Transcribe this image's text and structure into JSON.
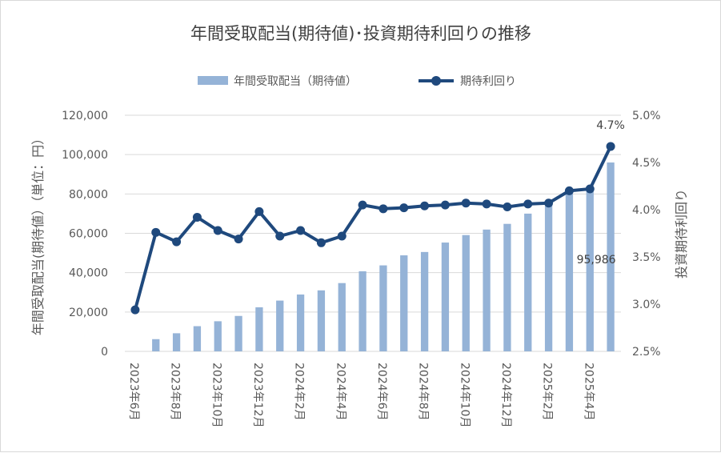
{
  "chart_data": {
    "type": "bar+line",
    "title": "年間受取配当(期待値)･投資期待利回りの推移",
    "ylabel": "年間受取配当(期待値）（単位：円）",
    "y2label": "投資期待利回り",
    "ylim": [
      0,
      120000
    ],
    "y2lim": [
      2.5,
      5.0
    ],
    "yticks": [
      "0",
      "20,000",
      "40,000",
      "60,000",
      "80,000",
      "100,000",
      "120,000"
    ],
    "y2ticks": [
      "2.5%",
      "3.0%",
      "3.5%",
      "4.0%",
      "4.5%",
      "5.0%"
    ],
    "xtick_labels": [
      "2023年6月",
      "2023年8月",
      "2023年10月",
      "2023年12月",
      "2024年2月",
      "2024年4月",
      "2024年6月",
      "2024年8月",
      "2024年10月",
      "2024年12月",
      "2025年2月",
      "2025年4月"
    ],
    "categories": [
      "2023年6月",
      "2023年7月",
      "2023年8月",
      "2023年9月",
      "2023年10月",
      "2023年11月",
      "2023年12月",
      "2024年1月",
      "2024年2月",
      "2024年3月",
      "2024年4月",
      "2024年5月",
      "2024年6月",
      "2024年7月",
      "2024年8月",
      "2024年9月",
      "2024年10月",
      "2024年11月",
      "2024年12月",
      "2025年1月",
      "2025年2月",
      "2025年3月",
      "2025年4月",
      "2025年5月"
    ],
    "series": [
      {
        "name": "年間受取配当（期待値）",
        "type": "bar",
        "color": "#95b3d7",
        "values": [
          0,
          6200,
          9200,
          12800,
          15300,
          18000,
          22400,
          25800,
          28900,
          31000,
          34700,
          40700,
          43700,
          48800,
          50500,
          55300,
          59100,
          61900,
          64800,
          70000,
          75800,
          80400,
          83200,
          95986
        ]
      },
      {
        "name": "期待利回り",
        "type": "line",
        "color": "#1f497d",
        "values": [
          2.94,
          3.76,
          3.66,
          3.92,
          3.78,
          3.69,
          3.98,
          3.72,
          3.78,
          3.65,
          3.72,
          4.05,
          4.01,
          4.02,
          4.04,
          4.05,
          4.07,
          4.06,
          4.03,
          4.06,
          4.07,
          4.2,
          4.22,
          4.67
        ]
      }
    ],
    "data_labels": {
      "last_bar": "95,986",
      "last_point": "4.7%"
    },
    "legend": "top",
    "grid": "horizontal"
  }
}
